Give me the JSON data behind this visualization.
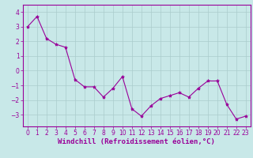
{
  "x": [
    0,
    1,
    2,
    3,
    4,
    5,
    6,
    7,
    8,
    9,
    10,
    11,
    12,
    13,
    14,
    15,
    16,
    17,
    18,
    19,
    20,
    21,
    22,
    23
  ],
  "y": [
    3.0,
    3.7,
    2.2,
    1.8,
    1.6,
    -0.6,
    -1.1,
    -1.1,
    -1.8,
    -1.2,
    -0.4,
    -2.6,
    -3.1,
    -2.4,
    -1.9,
    -1.7,
    -1.5,
    -1.8,
    -1.2,
    -0.7,
    -0.7,
    -2.3,
    -3.3,
    -3.1
  ],
  "line_color": "#990099",
  "marker": "*",
  "marker_size": 3,
  "bg_color": "#c8e8e8",
  "grid_color": "#aacccc",
  "axis_color": "#990099",
  "xlabel": "Windchill (Refroidissement éolien,°C)",
  "ylabel": "",
  "title": "",
  "xlim": [
    -0.5,
    23.5
  ],
  "ylim": [
    -3.8,
    4.5
  ],
  "yticks": [
    -3,
    -2,
    -1,
    0,
    1,
    2,
    3,
    4
  ],
  "xticks": [
    0,
    1,
    2,
    3,
    4,
    5,
    6,
    7,
    8,
    9,
    10,
    11,
    12,
    13,
    14,
    15,
    16,
    17,
    18,
    19,
    20,
    21,
    22,
    23
  ],
  "font_size": 5.5,
  "xlabel_fontsize": 6.5
}
